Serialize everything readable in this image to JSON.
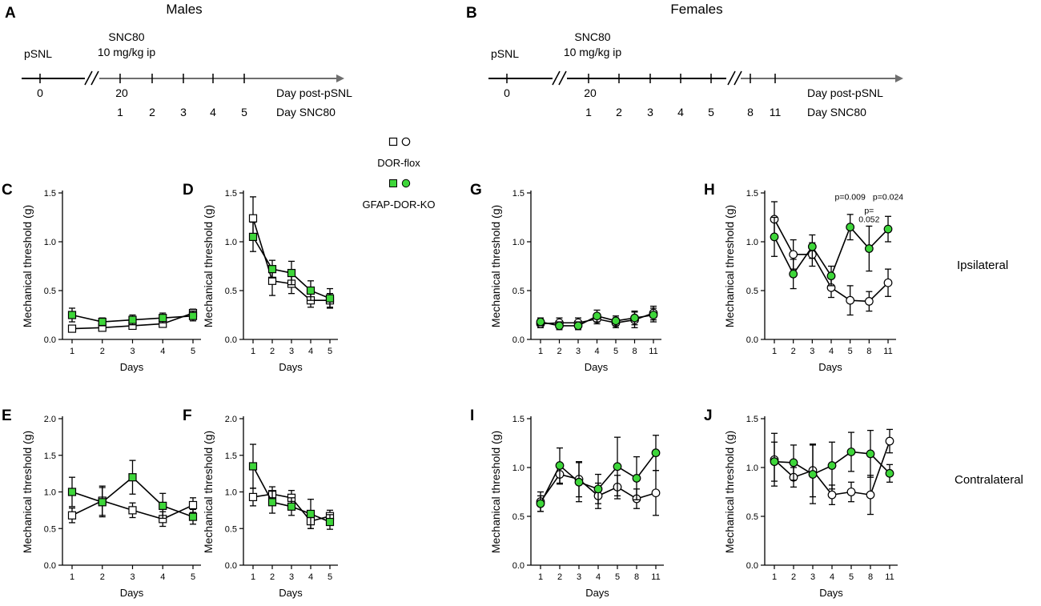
{
  "figure": {
    "title_males": "Males",
    "title_females": "Females",
    "side_labels": [
      "Ipsilateral",
      "Contralateral"
    ],
    "legend": {
      "control": "DOR-flox",
      "ko": "GFAP-DOR-KO"
    }
  },
  "colors": {
    "ko_fill": "#3ed63a",
    "control_fill": "#ffffff",
    "stroke": "#000000",
    "axis_gray": "#6e6e6e"
  },
  "timelines": [
    {
      "label": "A",
      "pre": "pSNL",
      "drug": "SNC80",
      "dose": "10 mg/kg ip",
      "row1_label": "Day post-pSNL",
      "row2_label": "Day SNC80",
      "day0": "0",
      "day20": "20",
      "snc_days": [
        "1",
        "2",
        "3",
        "4",
        "5"
      ]
    },
    {
      "label": "B",
      "pre": "pSNL",
      "drug": "SNC80",
      "dose": "10 mg/kg ip",
      "row1_label": "Day post-pSNL",
      "row2_label": "Day SNC80",
      "day0": "0",
      "day20": "20",
      "snc_days": [
        "1",
        "2",
        "3",
        "4",
        "5",
        "8",
        "11"
      ]
    }
  ],
  "chart_data": [
    {
      "panel": "C",
      "type": "line",
      "xlabel": "Days",
      "ylabel": "Mechanical threshold  (g)",
      "ylim": [
        0,
        1.5
      ],
      "yticks": [
        "0.0",
        "0.5",
        "1.0",
        "1.5"
      ],
      "categories": [
        "1",
        "2",
        "3",
        "4",
        "5"
      ],
      "series": [
        {
          "name": "DOR-flox",
          "marker": "square",
          "values": [
            0.11,
            0.12,
            0.14,
            0.16,
            0.27
          ],
          "errors": [
            0.03,
            0.03,
            0.03,
            0.03,
            0.04
          ]
        },
        {
          "name": "GFAP-DOR-KO",
          "marker": "square",
          "values": [
            0.25,
            0.18,
            0.2,
            0.22,
            0.24
          ],
          "errors": [
            0.07,
            0.04,
            0.05,
            0.05,
            0.05
          ]
        }
      ]
    },
    {
      "panel": "D",
      "type": "line",
      "xlabel": "Days",
      "ylabel": "Mechanical threshold  (g)",
      "ylim": [
        0,
        1.5
      ],
      "yticks": [
        "0.0",
        "0.5",
        "1.0",
        "1.5"
      ],
      "categories": [
        "1",
        "2",
        "3",
        "4",
        "5"
      ],
      "series": [
        {
          "name": "DOR-flox",
          "marker": "square",
          "values": [
            1.24,
            0.6,
            0.57,
            0.4,
            0.4
          ],
          "errors": [
            0.22,
            0.15,
            0.1,
            0.07,
            0.07
          ]
        },
        {
          "name": "GFAP-DOR-KO",
          "marker": "square",
          "values": [
            1.05,
            0.72,
            0.68,
            0.5,
            0.42
          ],
          "errors": [
            0.15,
            0.09,
            0.12,
            0.1,
            0.1
          ]
        }
      ]
    },
    {
      "panel": "G",
      "type": "line",
      "xlabel": "Days",
      "ylabel": "Mechanical threshold  (g)",
      "ylim": [
        0,
        1.5
      ],
      "yticks": [
        "0.0",
        "0.5",
        "1.0",
        "1.5"
      ],
      "categories": [
        "1",
        "2",
        "3",
        "4",
        "5",
        "8",
        "11"
      ],
      "series": [
        {
          "name": "DOR-flox",
          "marker": "circle",
          "values": [
            0.16,
            0.17,
            0.17,
            0.21,
            0.17,
            0.2,
            0.27
          ],
          "errors": [
            0.04,
            0.05,
            0.05,
            0.05,
            0.05,
            0.08,
            0.07
          ]
        },
        {
          "name": "GFAP-DOR-KO",
          "marker": "circle",
          "values": [
            0.18,
            0.14,
            0.14,
            0.24,
            0.19,
            0.22,
            0.25
          ],
          "errors": [
            0.04,
            0.04,
            0.04,
            0.06,
            0.05,
            0.07,
            0.07
          ]
        }
      ]
    },
    {
      "panel": "H",
      "type": "line",
      "xlabel": "Days",
      "ylabel": "Mechanical threshold  (g)",
      "ylim": [
        0,
        1.5
      ],
      "yticks": [
        "0.0",
        "0.5",
        "1.0",
        "1.5"
      ],
      "categories": [
        "1",
        "2",
        "3",
        "4",
        "5",
        "8",
        "11"
      ],
      "annotations": [
        {
          "text": "p=0.009",
          "category": "5",
          "y": 1.43
        },
        {
          "text": "p=0.024",
          "category": "11",
          "y": 1.43
        },
        {
          "text": "p=",
          "category": "8",
          "y": 1.29
        },
        {
          "text": "0.052",
          "category": "8",
          "y": 1.2
        }
      ],
      "series": [
        {
          "name": "DOR-flox",
          "marker": "circle",
          "values": [
            1.23,
            0.87,
            0.87,
            0.53,
            0.4,
            0.39,
            0.58
          ],
          "errors": [
            0.18,
            0.15,
            0.12,
            0.1,
            0.15,
            0.1,
            0.14
          ]
        },
        {
          "name": "GFAP-DOR-KO",
          "marker": "circle",
          "values": [
            1.05,
            0.67,
            0.95,
            0.65,
            1.15,
            0.93,
            1.13
          ],
          "errors": [
            0.2,
            0.15,
            0.12,
            0.1,
            0.13,
            0.23,
            0.13
          ]
        }
      ]
    },
    {
      "panel": "E",
      "type": "line",
      "xlabel": "Days",
      "ylabel": "Mechanical threshold  (g)",
      "ylim": [
        0,
        2.0
      ],
      "yticks": [
        "0.0",
        "0.5",
        "1.0",
        "1.5",
        "2.0"
      ],
      "categories": [
        "1",
        "2",
        "3",
        "4",
        "5"
      ],
      "series": [
        {
          "name": "DOR-flox",
          "marker": "square",
          "values": [
            0.68,
            0.88,
            0.75,
            0.63,
            0.82
          ],
          "errors": [
            0.1,
            0.2,
            0.1,
            0.1,
            0.1
          ]
        },
        {
          "name": "GFAP-DOR-KO",
          "marker": "square",
          "values": [
            1.0,
            0.86,
            1.2,
            0.81,
            0.66
          ],
          "errors": [
            0.2,
            0.2,
            0.23,
            0.17,
            0.1
          ]
        }
      ]
    },
    {
      "panel": "F",
      "type": "line",
      "xlabel": "Days",
      "ylabel": "Mechanical threshold  (g)",
      "ylim": [
        0,
        2.0
      ],
      "yticks": [
        "0.0",
        "0.5",
        "1.0",
        "1.5",
        "2.0"
      ],
      "categories": [
        "1",
        "2",
        "3",
        "4",
        "5"
      ],
      "series": [
        {
          "name": "DOR-flox",
          "marker": "square",
          "values": [
            0.93,
            0.97,
            0.92,
            0.6,
            0.67
          ],
          "errors": [
            0.12,
            0.1,
            0.1,
            0.1,
            0.08
          ]
        },
        {
          "name": "GFAP-DOR-KO",
          "marker": "square",
          "values": [
            1.35,
            0.86,
            0.8,
            0.7,
            0.59
          ],
          "errors": [
            0.3,
            0.15,
            0.12,
            0.2,
            0.1
          ]
        }
      ]
    },
    {
      "panel": "I",
      "type": "line",
      "xlabel": "Days",
      "ylabel": "Mechanical threshold  (g)",
      "ylim": [
        0,
        1.5
      ],
      "yticks": [
        "0.0",
        "0.5",
        "1.0",
        "1.5"
      ],
      "categories": [
        "1",
        "2",
        "3",
        "4",
        "5",
        "8",
        "11"
      ],
      "series": [
        {
          "name": "DOR-flox",
          "marker": "circle",
          "values": [
            0.65,
            0.93,
            0.88,
            0.71,
            0.8,
            0.68,
            0.74
          ],
          "errors": [
            0.1,
            0.1,
            0.18,
            0.13,
            0.12,
            0.1,
            0.23
          ]
        },
        {
          "name": "GFAP-DOR-KO",
          "marker": "circle",
          "values": [
            0.63,
            1.02,
            0.85,
            0.78,
            1.01,
            0.89,
            1.15
          ],
          "errors": [
            0.08,
            0.18,
            0.2,
            0.15,
            0.3,
            0.22,
            0.18
          ]
        }
      ]
    },
    {
      "panel": "J",
      "type": "line",
      "xlabel": "Days",
      "ylabel": "Mechanical threshold  (g)",
      "ylim": [
        0,
        1.5
      ],
      "yticks": [
        "0.0",
        "0.5",
        "1.0",
        "1.5"
      ],
      "categories": [
        "1",
        "2",
        "3",
        "4",
        "5",
        "8",
        "11"
      ],
      "series": [
        {
          "name": "DOR-flox",
          "marker": "circle",
          "values": [
            1.08,
            0.9,
            0.97,
            0.72,
            0.75,
            0.72,
            1.27
          ],
          "errors": [
            0.27,
            0.1,
            0.27,
            0.1,
            0.1,
            0.2,
            0.12
          ]
        },
        {
          "name": "GFAP-DOR-KO",
          "marker": "circle",
          "values": [
            1.06,
            1.05,
            0.93,
            1.02,
            1.16,
            1.14,
            0.94
          ],
          "errors": [
            0.2,
            0.18,
            0.3,
            0.24,
            0.2,
            0.24,
            0.09
          ]
        }
      ]
    }
  ]
}
